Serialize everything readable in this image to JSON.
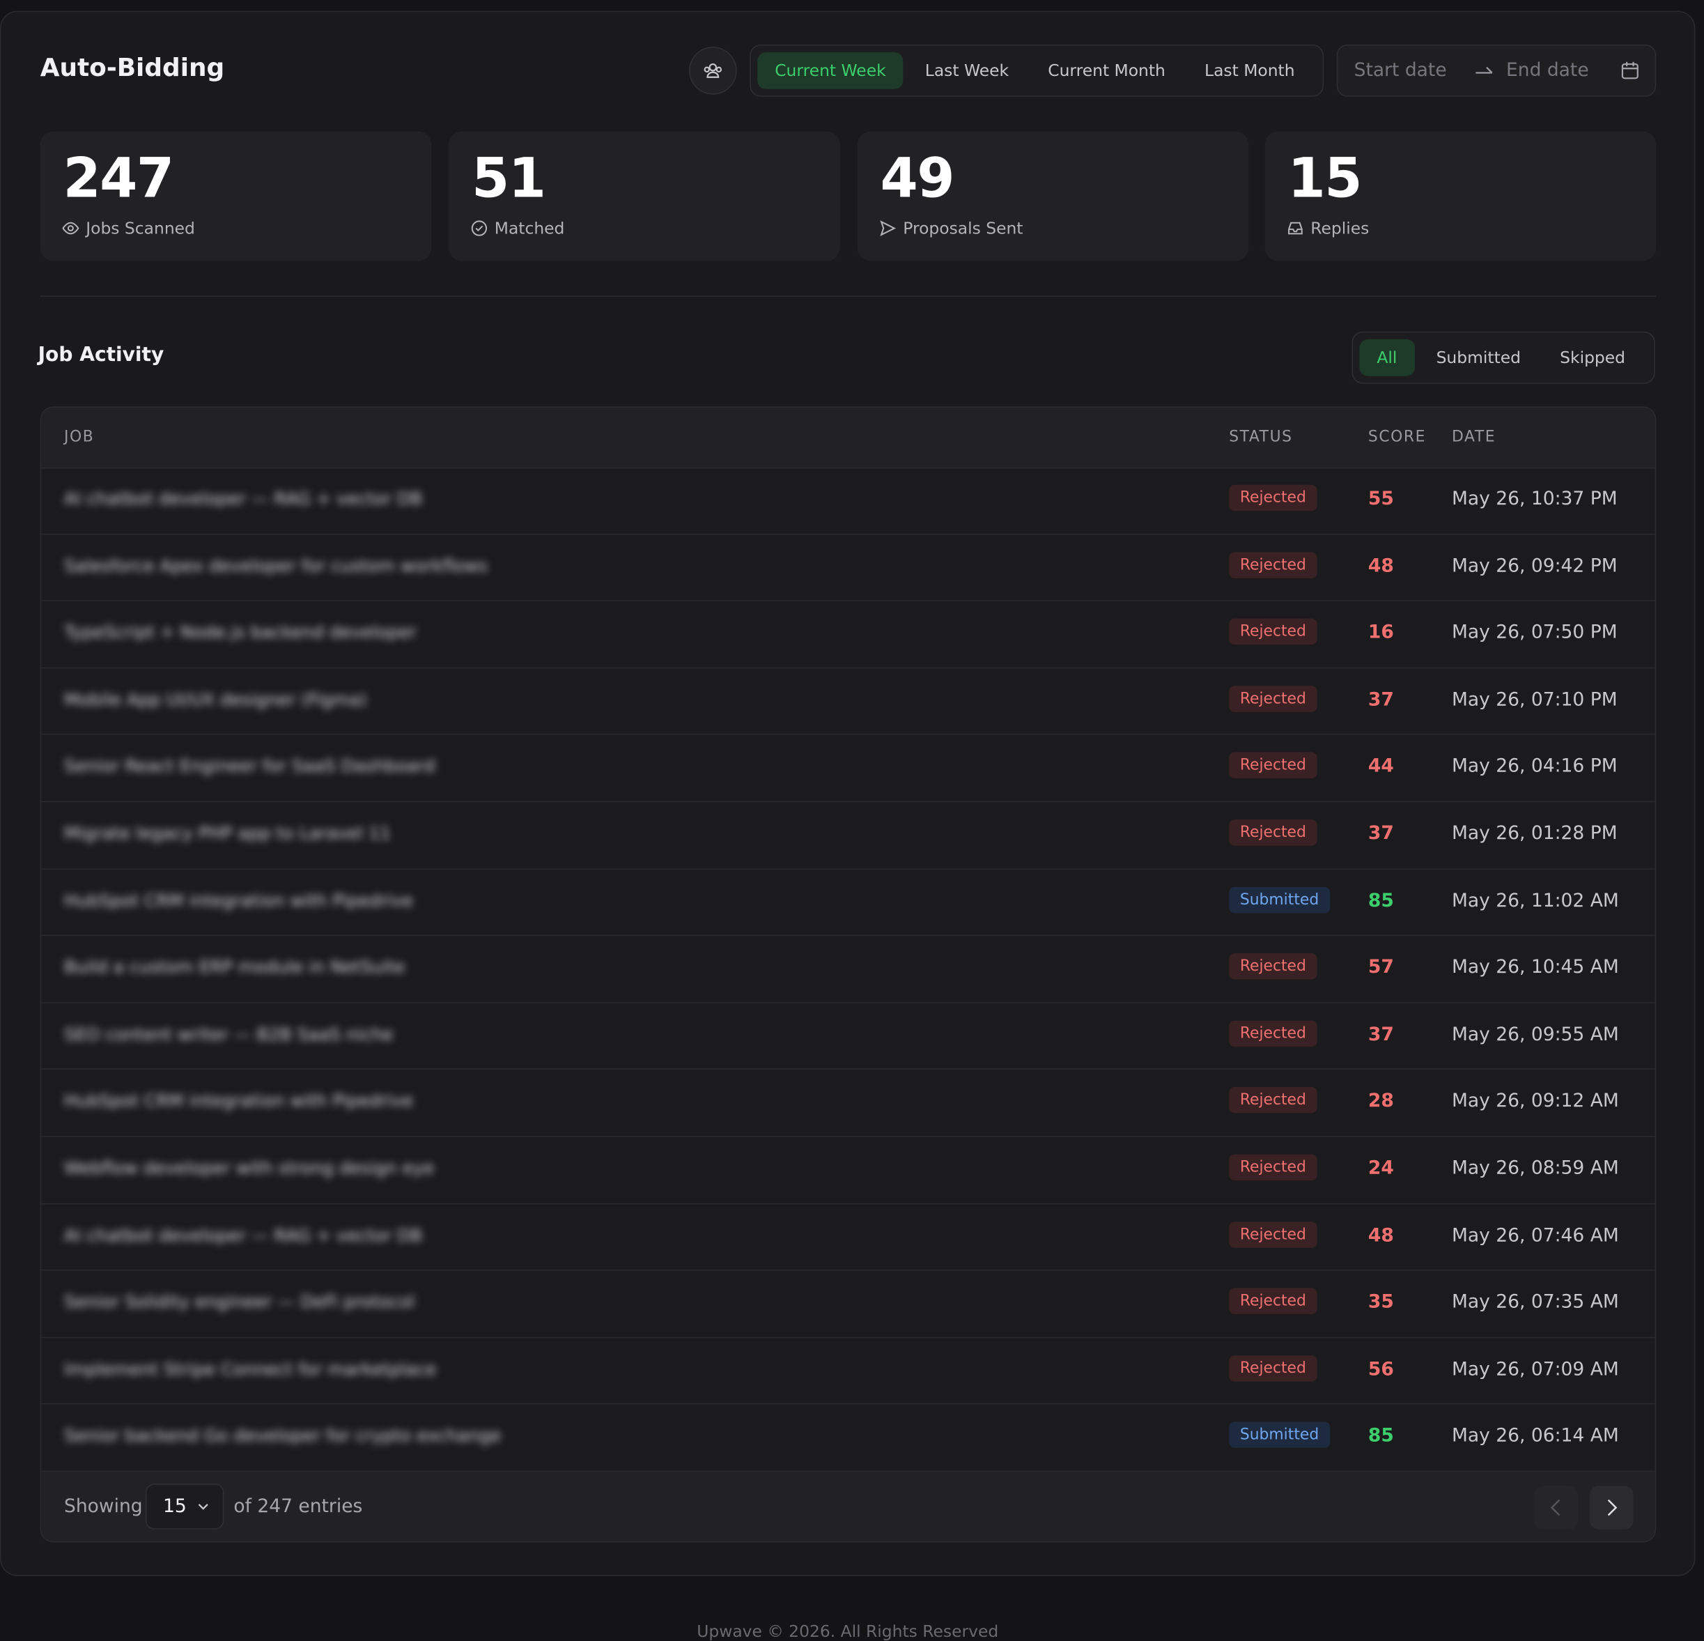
{
  "header": {
    "title": "Auto-Bidding",
    "ranges": [
      "Current Week",
      "Last Week",
      "Current Month",
      "Last Month"
    ],
    "start_date": "Start date",
    "end_date": "End date"
  },
  "stats": [
    {
      "value": "247",
      "label": "Jobs Scanned"
    },
    {
      "value": "51",
      "label": "Matched"
    },
    {
      "value": "49",
      "label": "Proposals Sent"
    },
    {
      "value": "15",
      "label": "Replies"
    }
  ],
  "activity": {
    "title": "Job Activity",
    "tabs": [
      "All",
      "Submitted",
      "Skipped"
    ],
    "columns": [
      "JOB",
      "STATUS",
      "SCORE",
      "DATE"
    ],
    "rows": [
      [
        "AI chatbot developer — RAG + vector DB",
        "Rejected",
        "55",
        "May 26, 10:37 PM"
      ],
      [
        "Salesforce Apex developer for custom workflows",
        "Rejected",
        "48",
        "May 26, 09:42 PM"
      ],
      [
        "TypeScript + Node.js backend developer",
        "Rejected",
        "16",
        "May 26, 07:50 PM"
      ],
      [
        "Mobile App UI/UX designer (Figma)",
        "Rejected",
        "37",
        "May 26, 07:10 PM"
      ],
      [
        "Senior React Engineer for SaaS Dashboard",
        "Rejected",
        "44",
        "May 26, 04:16 PM"
      ],
      [
        "Migrate legacy PHP app to Laravel 11",
        "Rejected",
        "37",
        "May 26, 01:28 PM"
      ],
      [
        "HubSpot CRM integration with Pipedrive",
        "Submitted",
        "85",
        "May 26, 11:02 AM"
      ],
      [
        "Build a custom ERP module in NetSuite",
        "Rejected",
        "57",
        "May 26, 10:45 AM"
      ],
      [
        "SEO content writer — B2B SaaS niche",
        "Rejected",
        "37",
        "May 26, 09:55 AM"
      ],
      [
        "HubSpot CRM integration with Pipedrive",
        "Rejected",
        "28",
        "May 26, 09:12 AM"
      ],
      [
        "Webflow developer with strong design eye",
        "Rejected",
        "24",
        "May 26, 08:59 AM"
      ],
      [
        "AI chatbot developer — RAG + vector DB",
        "Rejected",
        "48",
        "May 26, 07:46 AM"
      ],
      [
        "Senior Solidity engineer — DeFi protocol",
        "Rejected",
        "35",
        "May 26, 07:35 AM"
      ],
      [
        "Implement Stripe Connect for marketplace",
        "Rejected",
        "56",
        "May 26, 07:09 AM"
      ],
      [
        "Senior backend Go developer for crypto exchange",
        "Submitted",
        "85",
        "May 26, 06:14 AM"
      ]
    ],
    "footer": {
      "showing": "Showing",
      "per_page": "15",
      "total": "of 247 entries"
    }
  },
  "copyright": "Upwave © 2026. All Rights Reserved"
}
